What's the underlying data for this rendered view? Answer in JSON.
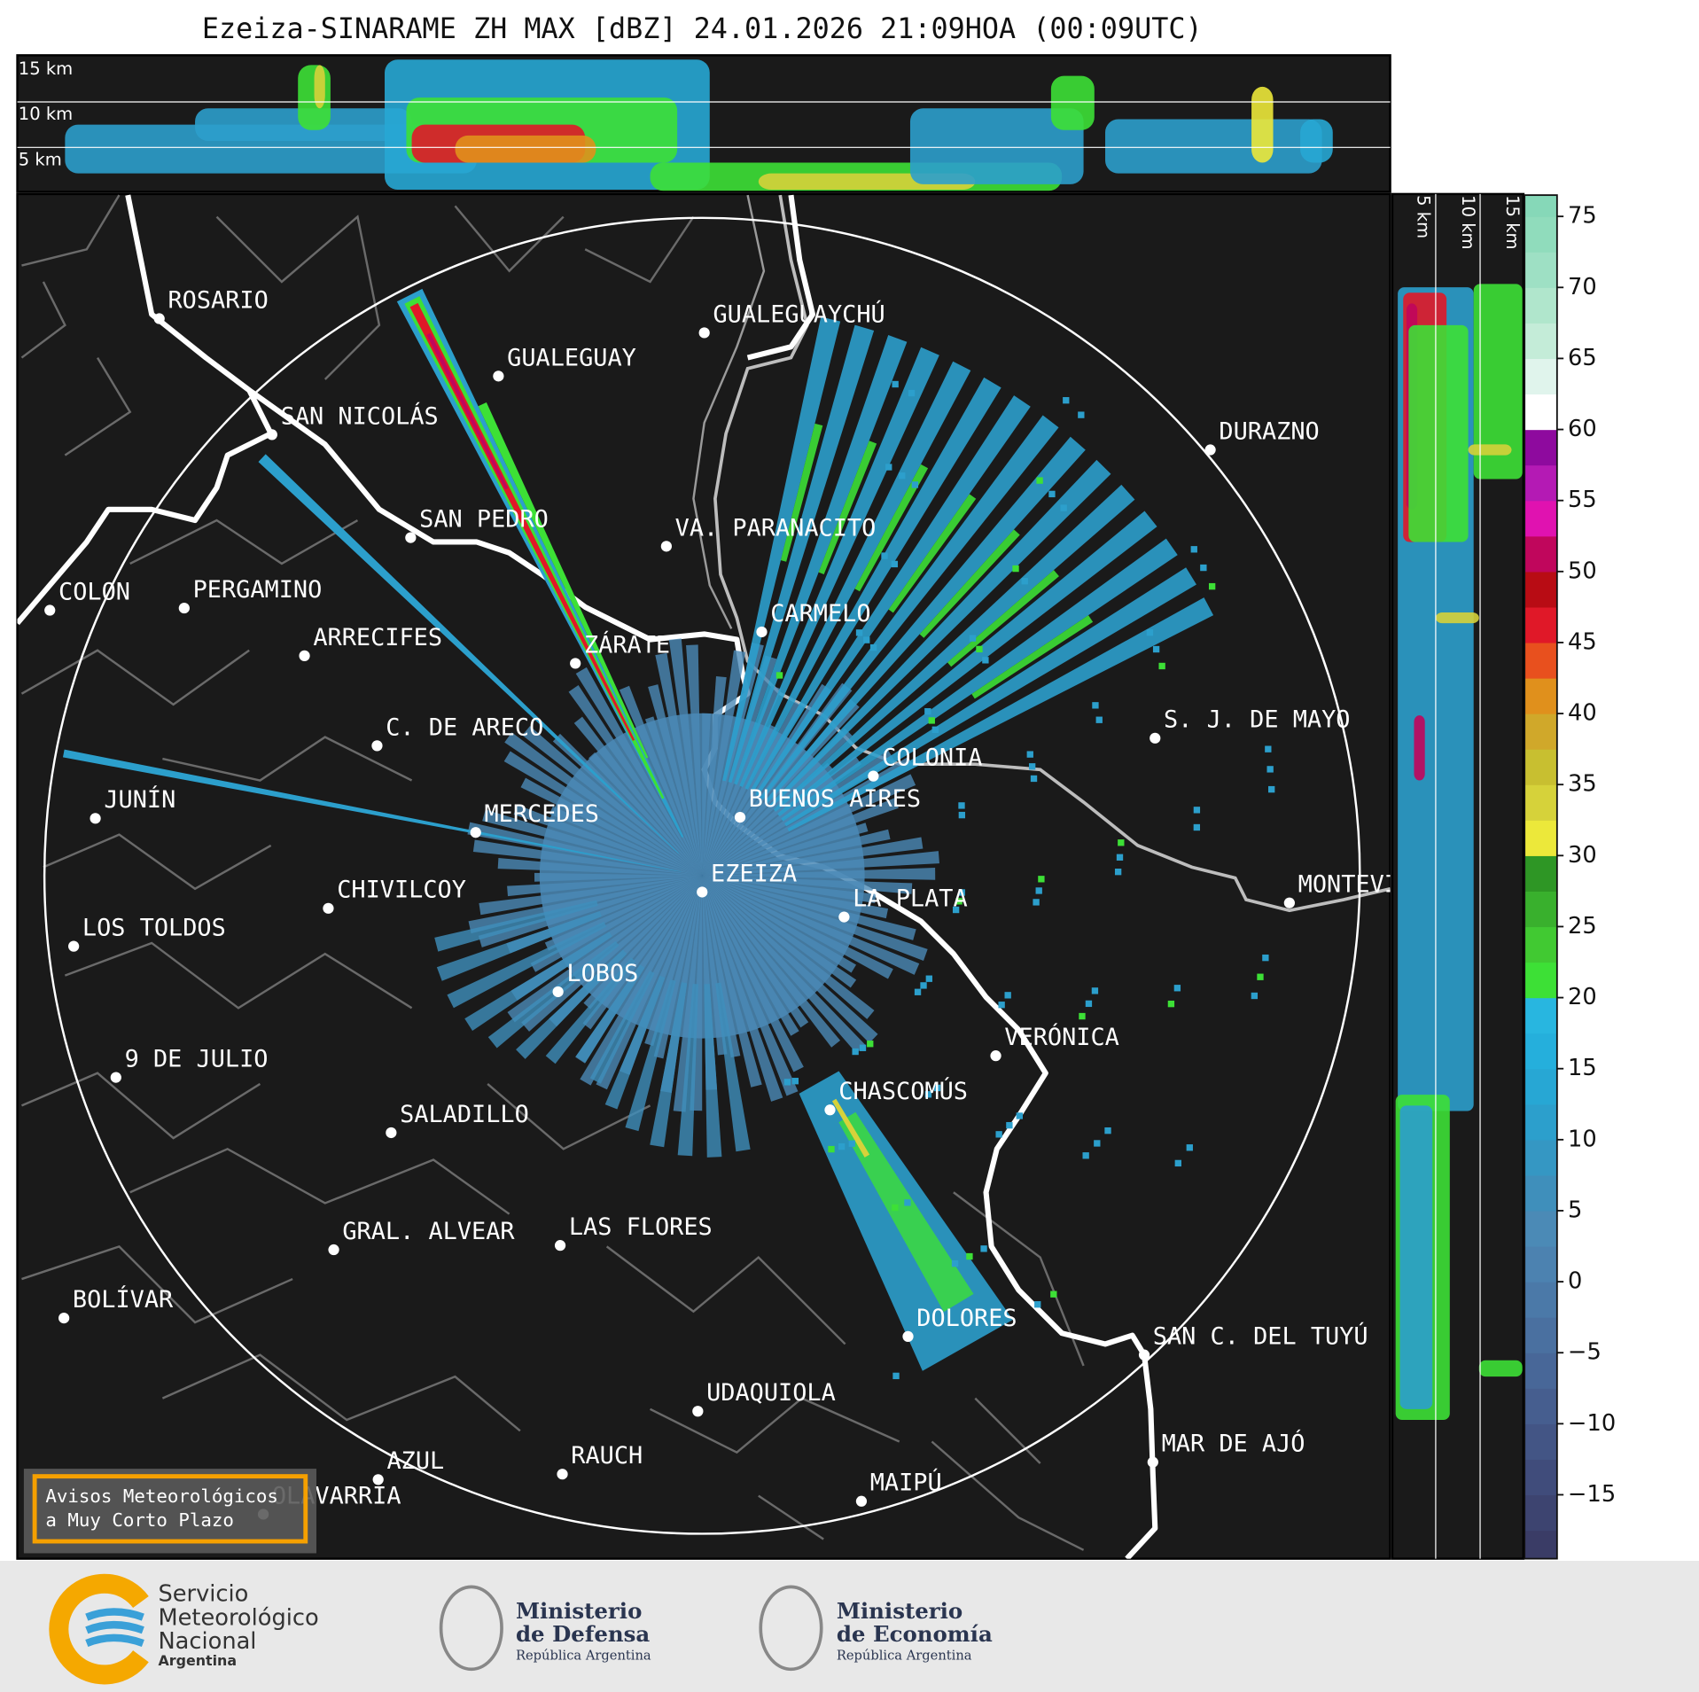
{
  "title": "Ezeiza-SINARAME ZH MAX [dBZ] 24.01.2026 21:09HOA (00:09UTC)",
  "profile_labels": [
    "15 km",
    "10 km",
    "5 km"
  ],
  "cities": [
    {
      "name": "ROSARIO"
    },
    {
      "name": "GUALEGUAYCHÚ"
    },
    {
      "name": "GUALEGUAY"
    },
    {
      "name": "SAN NICOLÁS"
    },
    {
      "name": "DURAZNO"
    },
    {
      "name": "SAN PEDRO"
    },
    {
      "name": "VA. PARANACITO"
    },
    {
      "name": "COLON"
    },
    {
      "name": "PERGAMINO"
    },
    {
      "name": "CARMELO"
    },
    {
      "name": "ARRECIFES"
    },
    {
      "name": "ZÁRATE"
    },
    {
      "name": "C. DE ARECO"
    },
    {
      "name": "S. J. DE MAYO"
    },
    {
      "name": "COLONIA"
    },
    {
      "name": "BUENOS AIRES"
    },
    {
      "name": "JUNÍN"
    },
    {
      "name": "MERCEDES"
    },
    {
      "name": "EZEIZA"
    },
    {
      "name": "CHIVILCOY"
    },
    {
      "name": "MONTEVIDEO"
    },
    {
      "name": "LA PLATA"
    },
    {
      "name": "LOS TOLDOS"
    },
    {
      "name": "LOBOS"
    },
    {
      "name": "VERÓNICA"
    },
    {
      "name": "9 DE JULIO"
    },
    {
      "name": "CHASCOMÚS"
    },
    {
      "name": "SALADILLO"
    },
    {
      "name": "GRAL. ALVEAR"
    },
    {
      "name": "LAS FLORES"
    },
    {
      "name": "BOLÍVAR"
    },
    {
      "name": "DOLORES"
    },
    {
      "name": "SAN C. DEL TUYÚ"
    },
    {
      "name": "UDAQUIOLA"
    },
    {
      "name": "MAR DE AJÓ"
    },
    {
      "name": "RAUCH"
    },
    {
      "name": "AZUL"
    },
    {
      "name": "OLAVARRÍA"
    },
    {
      "name": "MAIPÚ"
    }
  ],
  "colorbar": {
    "lim": [
      -19.5,
      76.5
    ],
    "ticks": [
      75,
      70,
      65,
      60,
      55,
      50,
      45,
      40,
      35,
      30,
      25,
      20,
      15,
      10,
      5,
      0,
      {
        "value": -5,
        "label": "−5"
      },
      {
        "value": -10,
        "label": "−10"
      },
      {
        "value": -15,
        "label": "−15"
      }
    ],
    "color_start": -20,
    "color_step": 2.5,
    "colors": [
      "#3a3c66",
      "#3d4470",
      "#404c7b",
      "#435585",
      "#465e8f",
      "#486798",
      "#4a70a0",
      "#4b79a8",
      "#4c82b0",
      "#4b8ab6",
      "#3f8fbb",
      "#3597c3",
      "#2c9fcc",
      "#27a7d4",
      "#25afdc",
      "#28b6e0",
      "#3de036",
      "#41c932",
      "#39b02d",
      "#2e9625",
      "#ece83a",
      "#d6d23a",
      "#c8bf30",
      "#d0a82a",
      "#e0901c",
      "#e8501e",
      "#e01828",
      "#b80c14",
      "#c0065c",
      "#e012b0",
      "#b41ab4",
      "#8e0a9e",
      "#ffffff",
      "#e0f4ec",
      "#c4ecd8",
      "#b0e6cc",
      "#9ee0c4",
      "#90dcbc",
      "#86d8b8"
    ]
  },
  "notice": [
    "Avisos Meteorológicos",
    "a Muy Corto Plazo"
  ],
  "logos": [
    {
      "lines": [
        "Servicio",
        "Meteorológico",
        "Nacional",
        "Argentina"
      ]
    },
    {
      "lines": [
        "Ministerio",
        "de Defensa",
        "República Argentina"
      ]
    },
    {
      "lines": [
        "Ministerio",
        "de Economía",
        "República Argentina"
      ]
    }
  ]
}
